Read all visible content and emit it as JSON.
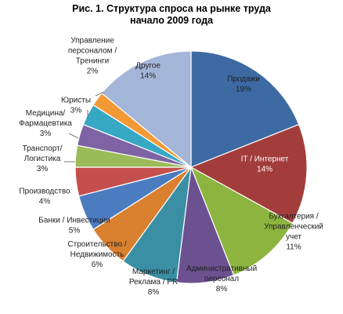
{
  "chart_data": {
    "type": "pie",
    "title_lines": [
      "Рис. 1. Структура  спроса на рынке труда",
      "начало 2009 года"
    ],
    "slices": [
      {
        "label_lines": [
          "Продажи"
        ],
        "value_label": "19%",
        "value": 19,
        "color": "#3d6aa3",
        "label_color": "#1f1f1f"
      },
      {
        "label_lines": [
          "IT / Интернет"
        ],
        "value_label": "14%",
        "value": 14,
        "color": "#a23d3b",
        "label_color": "#ffffff"
      },
      {
        "label_lines": [
          "Бухгалтерия /",
          "Управленческий",
          "учет"
        ],
        "value_label": "11%",
        "value": 11,
        "color": "#8db43f",
        "label_color": "#1f1f1f"
      },
      {
        "label_lines": [
          "Административный",
          "персонал"
        ],
        "value_label": "8%",
        "value": 8,
        "color": "#6c5190",
        "label_color": "#1f1f1f"
      },
      {
        "label_lines": [
          "Маркетинг /",
          "Реклама / PR"
        ],
        "value_label": "8%",
        "value": 8,
        "color": "#3b8fa5",
        "label_color": "#1f1f1f"
      },
      {
        "label_lines": [
          "Строительство /",
          "Недвижимость"
        ],
        "value_label": "6%",
        "value": 6,
        "color": "#d9802f",
        "label_color": "#1f1f1f"
      },
      {
        "label_lines": [
          "Банки / Инвестиции"
        ],
        "value_label": "5%",
        "value": 5,
        "color": "#4c7cc0",
        "label_color": "#1f1f1f"
      },
      {
        "label_lines": [
          "Производство"
        ],
        "value_label": "4%",
        "value": 4,
        "color": "#c44f4d",
        "label_color": "#1f1f1f"
      },
      {
        "label_lines": [
          "Транспорт/",
          "Логистика"
        ],
        "value_label": "3%",
        "value": 3,
        "color": "#9bbb5a",
        "label_color": "#1f1f1f"
      },
      {
        "label_lines": [
          "Медицина/",
          "Фармацевтика"
        ],
        "value_label": "3%",
        "value": 3,
        "color": "#7e64a4",
        "label_color": "#1f1f1f"
      },
      {
        "label_lines": [
          "Юристы"
        ],
        "value_label": "3%",
        "value": 3,
        "color": "#37a8c3",
        "label_color": "#1f1f1f"
      },
      {
        "label_lines": [
          "Управление",
          "персоналом /",
          "Тренинги"
        ],
        "value_label": "2%",
        "value": 2,
        "color": "#f39a36",
        "label_color": "#1f1f1f"
      },
      {
        "label_lines": [
          "Другое"
        ],
        "value_label": "14%",
        "value": 14,
        "color": "#a4b6d8",
        "label_color": "#1f1f1f"
      }
    ]
  }
}
